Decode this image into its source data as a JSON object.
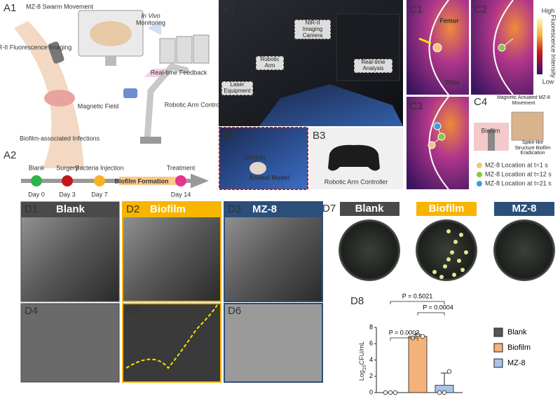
{
  "a1": {
    "label": "A1",
    "swarm": "MZ-8 Swarm Movement",
    "nir": "NIR-II Fluorescence Imaging",
    "in_vivo": "In Vivo",
    "monitoring": "Monitoring",
    "feedback": "Real-time Feedback",
    "magnetic_field": "Magnetic Field",
    "robot_control": "Robotic Arm Control",
    "infections": "Biofilm-associated Infections"
  },
  "a2": {
    "label": "A2",
    "events": [
      {
        "name": "Blank",
        "day": "Day 0"
      },
      {
        "name": "Surgery",
        "day": "Day 3"
      },
      {
        "name": "Bacteria Injection",
        "day": "Day 7"
      },
      {
        "name": "Treatment",
        "day": "Day 14"
      }
    ],
    "phase": "Biofilm Formation"
  },
  "b1": {
    "label": "B1",
    "camera": "NIR-II Imaging Camera",
    "arm": "Robotic Arm",
    "analysis": "Real-time Analysis",
    "laser": "Laser Equipment"
  },
  "b2": {
    "label": "B2",
    "magnet": "Magnet",
    "model": "Animal Model"
  },
  "b3": {
    "label": "B3",
    "caption": "Robotic Arm Controller"
  },
  "c": {
    "c1": "C1",
    "c2": "C2",
    "c3": "C3",
    "femur": "Femur",
    "tibia": "Tibia",
    "scale_high": "High",
    "scale_title": "Fluorescence Intensity",
    "scale_low": "Low"
  },
  "c4": {
    "label": "C4",
    "title": "Magnetic Actuated MZ-8 Movement",
    "biofilm": "Biofilm",
    "caption": "Spike-like Structure Biofilm Eradication",
    "legend": [
      "MZ-8 Location at t=1 s",
      "MZ-8 Location at t=12 s",
      "MZ-8 Location at t=21 s"
    ]
  },
  "d_sem": {
    "panels": [
      {
        "label": "D1",
        "title": "Blank"
      },
      {
        "label": "D2",
        "title": "Biofilm"
      },
      {
        "label": "D3",
        "title": "MZ-8"
      },
      {
        "label": "D4"
      },
      {
        "label": "D5"
      },
      {
        "label": "D6"
      }
    ]
  },
  "d7": {
    "label": "D7",
    "groups": [
      "Blank",
      "Biofilm",
      "MZ-8"
    ]
  },
  "d8": {
    "type": "bar",
    "label": "D8",
    "y_label": "Log",
    "y_label_sub": "10",
    "y_label_unit": "CFU/mL",
    "categories": [
      "Blank",
      "Biofilm",
      "MZ-8"
    ],
    "values": [
      0,
      6.9,
      0.9
    ],
    "errors": [
      0,
      0.2,
      1.5
    ],
    "points": [
      [
        0,
        0,
        0
      ],
      [
        6.7,
        7.1,
        6.9
      ],
      [
        0,
        0,
        2.6
      ]
    ],
    "colors": [
      "#555555",
      "#f4b27a",
      "#a9c4ea"
    ],
    "ylim": [
      0,
      8
    ],
    "yticks": [
      0,
      2,
      4,
      6,
      8
    ],
    "annotations": [
      "P = 0.0002",
      "P = 0.0004",
      "P = 0.5021"
    ]
  }
}
